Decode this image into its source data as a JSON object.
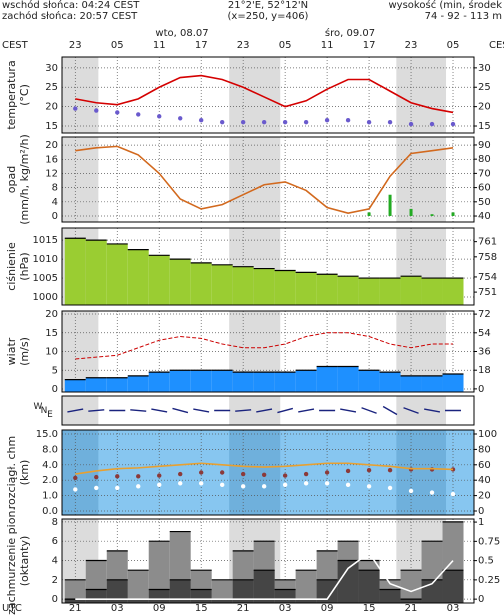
{
  "header": {
    "sunrise": "wschód słońca: 04:24 CEST",
    "sunset": "zachód słońca: 20:57 CEST",
    "coords": "21°2'E, 52°12'N",
    "grid": "(x=250, y=406)",
    "altitude_title": "wysokość (min, środek",
    "altitude": "74 - 92 - 113 m"
  },
  "time": {
    "top_zone": "CEST",
    "top_zone_right": "CEST",
    "bottom_zone": "UTC",
    "dates": [
      "wto, 08.07",
      "śro, 09.07"
    ],
    "xlim": [
      -1.9,
      57
    ],
    "x": [
      0,
      3,
      6,
      9,
      12,
      15,
      18,
      21,
      24,
      27,
      30,
      33,
      36,
      39,
      42,
      45,
      48,
      51,
      54
    ],
    "night": [
      [
        -1.9,
        3.3
      ],
      [
        22,
        29.3
      ],
      [
        45.9,
        53
      ]
    ],
    "cest_ticks": [
      {
        "value": 0,
        "label": "23"
      },
      {
        "value": 6,
        "label": "05"
      },
      {
        "value": 12,
        "label": "11"
      },
      {
        "value": 18,
        "label": "17"
      },
      {
        "value": 24,
        "label": "23"
      },
      {
        "value": 30,
        "label": "05"
      },
      {
        "value": 36,
        "label": "11"
      },
      {
        "value": 42,
        "label": "17"
      },
      {
        "value": 48,
        "label": "23"
      },
      {
        "value": 54,
        "label": "05"
      }
    ],
    "utc_ticks": [
      {
        "value": 0,
        "label": "21"
      },
      {
        "value": 6,
        "label": "03"
      },
      {
        "value": 12,
        "label": "09"
      },
      {
        "value": 18,
        "label": "15"
      },
      {
        "value": 24,
        "label": "21"
      },
      {
        "value": 30,
        "label": "03"
      },
      {
        "value": 36,
        "label": "09"
      },
      {
        "value": 42,
        "label": "15"
      },
      {
        "value": 48,
        "label": "21"
      },
      {
        "value": 54,
        "label": "03"
      }
    ]
  },
  "chart_data": [
    {
      "type": "line",
      "ylabel": [
        "temperatura",
        "(°C)"
      ],
      "ylim": [
        13.2,
        32.8
      ],
      "yticks": [
        30,
        25,
        20,
        15
      ],
      "y2lim": [
        13.2,
        32.8
      ],
      "y2ticks": [
        30,
        25,
        20,
        15
      ],
      "grid": true,
      "series": [
        {
          "type": "line",
          "color": "#d40000",
          "values": [
            22,
            21,
            20.5,
            22,
            25,
            27.5,
            28,
            27,
            25,
            22.5,
            20,
            21.5,
            24.5,
            27,
            27,
            24,
            21,
            19.5,
            18.5
          ]
        },
        {
          "type": "dots",
          "color": "#6a5acd",
          "values": [
            19.5,
            19,
            18.5,
            18,
            17.5,
            17,
            16.5,
            16,
            16,
            16,
            16,
            16,
            16.5,
            16.5,
            16,
            16,
            15.5,
            15.5,
            15.5
          ]
        }
      ]
    },
    {
      "type": "bar",
      "ylabel": [
        "opad",
        "(mm/h, kg/m²/h)"
      ],
      "ylim": [
        -1.7,
        22.3
      ],
      "yticks": [
        20,
        16,
        12,
        8,
        4,
        0
      ],
      "y2lim": [
        35.8,
        95.6
      ],
      "y2ticks": [
        90,
        80,
        70,
        60,
        50,
        40
      ],
      "grid": true,
      "series": [
        {
          "type": "bar",
          "color": "#22aa22",
          "values": [
            0,
            0,
            0,
            0,
            0,
            0,
            0,
            0,
            0,
            0,
            0,
            0,
            0,
            0,
            1,
            6,
            2,
            0.5,
            1
          ]
        },
        {
          "type": "line",
          "axis": "y2",
          "color": "#d2691e",
          "values": [
            86,
            88,
            89,
            83,
            70,
            52,
            45,
            48,
            55,
            62,
            64,
            58,
            46,
            42,
            45,
            68,
            84,
            86,
            88
          ]
        }
      ]
    },
    {
      "type": "area",
      "ylabel": [
        "ciśnienie",
        "(hPa)"
      ],
      "ylim": [
        997.9,
        1018.2
      ],
      "yticks": [
        1015,
        1010,
        1005,
        1000
      ],
      "y2lim": [
        997.9,
        1018.2
      ],
      "y2ticks": [
        {
          "value": 1014.6,
          "label": "761"
        },
        {
          "value": 1010.6,
          "label": "758"
        },
        {
          "value": 1005.3,
          "label": "754"
        },
        {
          "value": 1001.3,
          "label": "751"
        }
      ],
      "grid": true,
      "series": [
        {
          "type": "area",
          "color": "#9acd32",
          "values": [
            1015.5,
            1015,
            1014,
            1012.5,
            1011,
            1010,
            1009,
            1008.5,
            1008,
            1007.5,
            1007,
            1006.5,
            1006,
            1005.5,
            1005,
            1005,
            1005.5,
            1005,
            1005
          ]
        }
      ]
    },
    {
      "type": "area",
      "ylabel": [
        "wiatr",
        "(m/s)"
      ],
      "ylim": [
        -0.8,
        20.8
      ],
      "yticks": [
        20,
        15,
        10,
        5,
        0
      ],
      "y2lim": [
        -3,
        75
      ],
      "y2ticks": [
        72,
        54,
        36,
        18,
        0
      ],
      "grid": true,
      "series": [
        {
          "type": "area",
          "color": "#1e90ff",
          "values": [
            2.5,
            3,
            3,
            3.5,
            4.5,
            5,
            5,
            5,
            4.5,
            4.5,
            4.5,
            5,
            6,
            6,
            5,
            4.5,
            3.5,
            3.5,
            4
          ]
        },
        {
          "type": "line",
          "color": "#cc0000",
          "dash": true,
          "values": [
            8,
            8.5,
            9,
            11,
            13,
            14,
            13.5,
            12,
            11,
            11,
            12,
            14,
            15,
            15,
            14,
            12,
            11,
            12,
            12
          ]
        }
      ]
    },
    {
      "type": "arrows",
      "ylabel": [
        "W",
        "N",
        "E"
      ],
      "series": [
        {
          "type": "arrows",
          "color": "#1a237e",
          "values": [
            260,
            265,
            270,
            275,
            280,
            285,
            280,
            270,
            265,
            260,
            255,
            260,
            270,
            280,
            290,
            300,
            290,
            280,
            270
          ]
        }
      ]
    },
    {
      "type": "dots",
      "ylabel": [
        "rozciągł. chm",
        "(km)"
      ],
      "background": "#87c6f0",
      "scale": "ticks",
      "ylim": [
        0,
        15
      ],
      "yticks": [
        {
          "value": 15,
          "label": "15.0"
        },
        {
          "value": 8,
          "label": "8.0"
        },
        {
          "value": 4,
          "label": "4.0"
        },
        {
          "value": 2,
          "label": "2.0"
        },
        {
          "value": 1,
          "label": "1.0"
        },
        {
          "value": 0,
          "label": "0.0"
        }
      ],
      "y2lim": [
        0,
        100
      ],
      "y2ticks": [
        100,
        80,
        60,
        40,
        20,
        0
      ],
      "grid": true,
      "series": [
        {
          "type": "dots",
          "color": "#8b3a3a",
          "values": [
            2.3,
            2.4,
            2.5,
            2.5,
            2.6,
            2.8,
            3,
            3,
            2.8,
            2.7,
            2.6,
            2.8,
            3,
            3.2,
            3.3,
            3.3,
            3.4,
            3.4,
            3.4
          ]
        },
        {
          "type": "dots",
          "color": "#ffffff",
          "values": [
            1.4,
            1.5,
            1.5,
            1.6,
            1.7,
            1.8,
            1.8,
            1.7,
            1.6,
            1.6,
            1.7,
            1.8,
            1.8,
            1.7,
            1.6,
            1.5,
            1.3,
            1.2,
            1.1
          ]
        },
        {
          "type": "line",
          "axis": "y2",
          "color": "#e8a030",
          "values": [
            48,
            52,
            55,
            56,
            58,
            60,
            62,
            60,
            58,
            57,
            58,
            60,
            62,
            62,
            60,
            58,
            55,
            55,
            54
          ]
        }
      ]
    },
    {
      "type": "area",
      "ylabel": [
        "zachmurzenie pion.",
        "(oktanty)"
      ],
      "ylim": [
        -0.4,
        8.3
      ],
      "yticks": [
        8,
        6,
        4,
        2,
        0
      ],
      "y2lim": [
        -0.05,
        1.04
      ],
      "y2ticks": [
        1,
        0.75,
        0.5,
        0.25,
        0
      ],
      "grid": true,
      "series": [
        {
          "type": "area",
          "color": "#8c8c8c",
          "values": [
            2,
            4,
            5,
            3,
            6,
            7,
            3,
            2,
            5,
            6,
            2,
            3,
            5,
            6,
            4,
            2,
            3,
            6,
            8
          ]
        },
        {
          "type": "area",
          "color": "#454545",
          "values": [
            0,
            1,
            2,
            0,
            1,
            2,
            1,
            0,
            2,
            3,
            1,
            0,
            2,
            4,
            3,
            1,
            0,
            2,
            3
          ]
        },
        {
          "type": "line",
          "axis": "y2",
          "color": "#ffffff",
          "values": [
            0,
            0,
            0,
            0,
            0,
            0,
            0,
            0,
            0,
            0,
            0,
            0,
            0,
            0.4,
            0.6,
            0.2,
            0.1,
            0.2,
            0.5
          ]
        }
      ]
    }
  ]
}
